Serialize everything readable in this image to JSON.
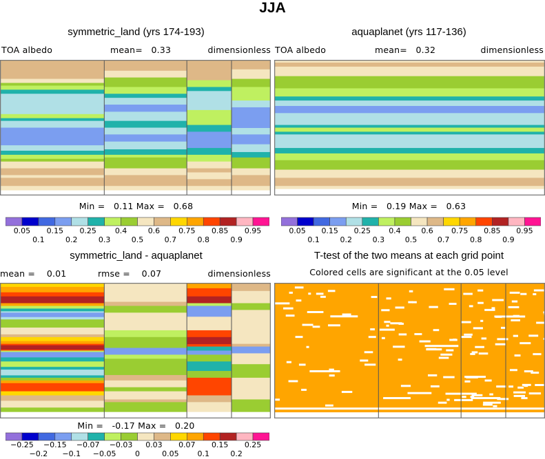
{
  "figure_title": "JJA",
  "palette": [
    "#9370DB",
    "#0000CD",
    "#4169E1",
    "#7B9EF0",
    "#B0E0E6",
    "#20B2AA",
    "#BFF060",
    "#9ACD32",
    "#F5E6C0",
    "#DEB887",
    "#FFD700",
    "#FFA500",
    "#FF4500",
    "#B22222",
    "#FFB6C1",
    "#FF1493"
  ],
  "chart_data": [
    {
      "type": "heatmap",
      "title": "symmetric_land (yrs 174-193)",
      "variable": "TOA albedo",
      "mean_label": "mean=",
      "mean": "0.33",
      "units": "dimensionless",
      "min_label": "Min =",
      "min": "0.11",
      "max_label": "Max =",
      "max": "0.68",
      "colorbar_levels": [
        "0.05",
        "0.1",
        "0.15",
        "0.2",
        "0.25",
        "0.3",
        "0.4",
        "0.5",
        "0.6",
        "0.7",
        "0.75",
        "0.8",
        "0.85",
        "0.9",
        "0.95"
      ]
    },
    {
      "type": "heatmap",
      "title": "aquaplanet (yrs 117-136)",
      "variable": "TOA albedo",
      "mean_label": "mean=",
      "mean": "0.32",
      "units": "dimensionless",
      "min_label": "Min =",
      "min": "0.19",
      "max_label": "Max =",
      "max": "0.63",
      "colorbar_levels": [
        "0.05",
        "0.1",
        "0.15",
        "0.2",
        "0.25",
        "0.3",
        "0.4",
        "0.5",
        "0.6",
        "0.7",
        "0.75",
        "0.8",
        "0.85",
        "0.9",
        "0.95"
      ]
    },
    {
      "type": "heatmap",
      "title": "symmetric_land - aquaplanet",
      "mean_label": "mean =",
      "mean": "0.01",
      "rmse_label": "rmse =",
      "rmse": "0.07",
      "units": "dimensionless",
      "min_label": "Min =",
      "min": "-0.17",
      "max_label": "Max =",
      "max": "0.20",
      "colorbar_levels": [
        "-0.25",
        "-0.2",
        "-0.15",
        "-0.1",
        "-0.07",
        "-0.05",
        "-0.03",
        "0",
        "0.03",
        "0.05",
        "0.07",
        "0.1",
        "0.15",
        "0.2",
        "0.25"
      ]
    },
    {
      "type": "heatmap",
      "title": "T-test of the two means at each grid point",
      "subtitle": "Colored cells are significant at the 0.05 level",
      "significant_color": "#FFA500"
    }
  ]
}
